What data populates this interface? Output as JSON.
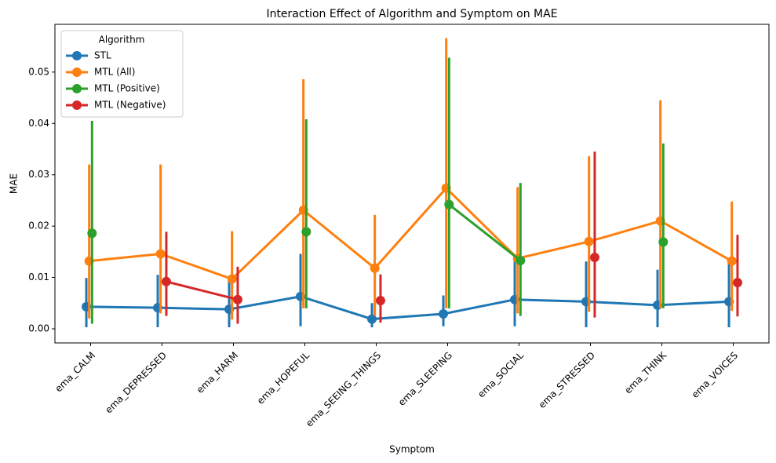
{
  "chart_data": {
    "type": "pointplot",
    "title": "Interaction Effect of Algorithm and Symptom on MAE",
    "xlabel": "Symptom",
    "ylabel": "MAE",
    "categories": [
      "ema_CALM",
      "ema_DEPRESSED",
      "ema_HARM",
      "ema_HOPEFUL",
      "ema_SEEING_THINGS",
      "ema_SLEEPING",
      "ema_SOCIAL",
      "ema_STRESSED",
      "ema_THINK",
      "ema_VOICES"
    ],
    "ylim": [
      -0.00275,
      0.0593
    ],
    "yticks": [
      {
        "value": 0,
        "label": "0.00"
      },
      {
        "value": 0.01,
        "label": "0.01"
      },
      {
        "value": 0.02,
        "label": "0.02"
      },
      {
        "value": 0.03,
        "label": "0.03"
      },
      {
        "value": 0.04,
        "label": "0.04"
      },
      {
        "value": 0.05,
        "label": "0.05"
      }
    ],
    "legend_title": "Algorithm",
    "legend_position": "upper left",
    "series": [
      {
        "name": "STL",
        "color": "#1f77b4",
        "values": [
          0.0043,
          0.0041,
          0.0038,
          0.0063,
          0.0019,
          0.0029,
          0.0057,
          0.0053,
          0.0046,
          0.0053
        ],
        "lower": [
          0.0003,
          0.0003,
          0.0003,
          0.0005,
          0.0003,
          0.0005,
          0.0005,
          0.0003,
          0.0003,
          0.0003
        ],
        "upper": [
          0.0099,
          0.0105,
          0.0095,
          0.0146,
          0.005,
          0.0065,
          0.0135,
          0.0131,
          0.0115,
          0.0135
        ]
      },
      {
        "name": "MTL (All)",
        "color": "#ff7f0e",
        "values": [
          0.0132,
          0.0146,
          0.0097,
          0.0231,
          0.0118,
          0.0274,
          0.0137,
          0.017,
          0.021,
          0.0132
        ],
        "lower": [
          0.002,
          0.003,
          0.0018,
          0.004,
          0.0025,
          0.004,
          0.003,
          0.0033,
          0.004,
          0.0035
        ],
        "upper": [
          0.032,
          0.032,
          0.019,
          0.0486,
          0.0222,
          0.0566,
          0.0276,
          0.0336,
          0.0445,
          0.0248
        ]
      },
      {
        "name": "MTL (Positive)",
        "color": "#2ca02c",
        "values": [
          0.0186,
          null,
          null,
          0.0189,
          null,
          0.0242,
          0.0133,
          null,
          0.0169,
          null
        ],
        "lower": [
          0.001,
          null,
          null,
          0.004,
          null,
          0.004,
          0.0025,
          null,
          0.004,
          null
        ],
        "upper": [
          0.0405,
          null,
          null,
          0.0408,
          null,
          0.0528,
          0.0284,
          null,
          0.0361,
          null
        ]
      },
      {
        "name": "MTL (Negative)",
        "color": "#d62728",
        "values": [
          null,
          0.0092,
          0.0057,
          null,
          0.0055,
          null,
          null,
          0.0139,
          null,
          0.009
        ],
        "lower": [
          null,
          0.0025,
          0.001,
          null,
          0.0012,
          null,
          null,
          0.0022,
          null,
          0.0024
        ],
        "upper": [
          null,
          0.0189,
          0.0121,
          null,
          0.0106,
          null,
          null,
          0.0345,
          null,
          0.0183
        ]
      }
    ]
  }
}
